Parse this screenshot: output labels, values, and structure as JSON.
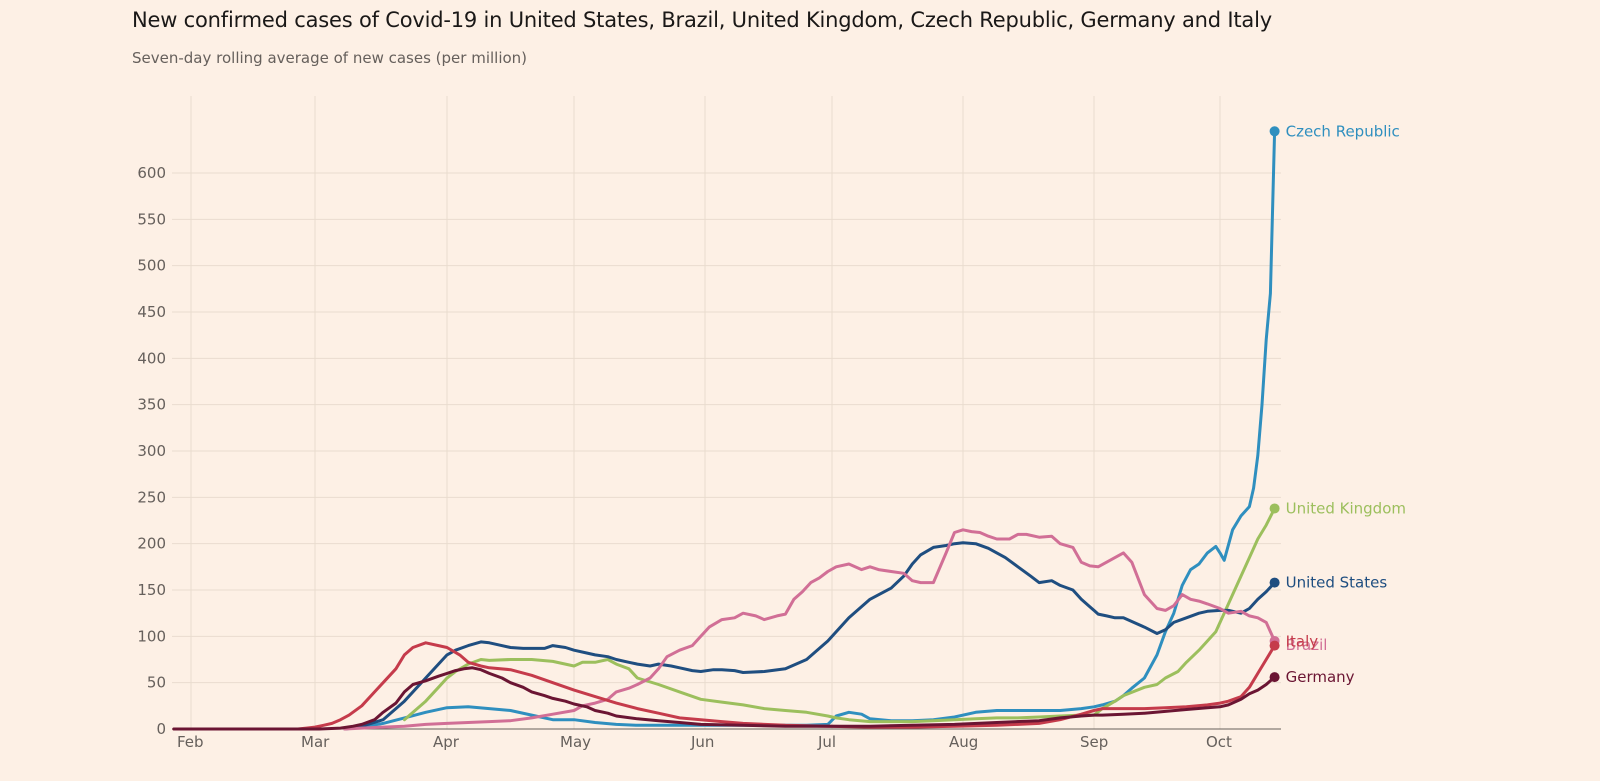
{
  "header": {
    "title": "New confirmed cases of Covid-19 in United States, Brazil, United Kingdom, Czech Republic, Germany and Italy",
    "subtitle": "Seven-day rolling average of new cases (per million)"
  },
  "chart_data": {
    "type": "line",
    "title": "New confirmed cases of Covid-19 in United States, Brazil, United Kingdom, Czech Republic, Germany and Italy",
    "subtitle": "Seven-day rolling average of new cases (per million)",
    "xlabel": "",
    "ylabel": "",
    "x_unit": "days since Feb 1, 2020",
    "xlim": [
      -4,
      256
    ],
    "ylim": [
      0,
      650
    ],
    "yticks": [
      0,
      50,
      100,
      150,
      200,
      250,
      300,
      350,
      400,
      450,
      500,
      550,
      600
    ],
    "xticks": [
      {
        "label": "Feb",
        "day": 0
      },
      {
        "label": "Mar",
        "day": 29
      },
      {
        "label": "Apr",
        "day": 60
      },
      {
        "label": "May",
        "day": 90
      },
      {
        "label": "Jun",
        "day": 121
      },
      {
        "label": "Jul",
        "day": 151
      },
      {
        "label": "Aug",
        "day": 182
      },
      {
        "label": "Sep",
        "day": 213
      },
      {
        "label": "Oct",
        "day": 243
      }
    ],
    "grid": true,
    "legend": "end-of-line labels (right)",
    "series": [
      {
        "name": "Czech Republic",
        "label": "Czech Republic",
        "color": "#2f8fbf",
        "x": [
          36,
          40,
          45,
          50,
          55,
          60,
          65,
          70,
          75,
          80,
          85,
          90,
          95,
          100,
          105,
          110,
          115,
          120,
          125,
          130,
          135,
          140,
          145,
          150,
          152,
          155,
          158,
          160,
          165,
          170,
          175,
          180,
          185,
          190,
          195,
          200,
          205,
          210,
          213,
          215,
          218,
          220,
          222,
          225,
          228,
          230,
          232,
          234,
          236,
          238,
          240,
          242,
          243,
          244,
          246,
          248,
          250,
          251,
          252,
          253,
          254,
          255,
          256
        ],
        "y": [
          0,
          2,
          6,
          12,
          18,
          23,
          24,
          22,
          20,
          15,
          10,
          10,
          7,
          5,
          4,
          4,
          4,
          4,
          4,
          4,
          4,
          4,
          4,
          5,
          14,
          18,
          16,
          11,
          9,
          9,
          10,
          13,
          18,
          20,
          20,
          20,
          20,
          22,
          24,
          26,
          30,
          36,
          44,
          55,
          80,
          105,
          125,
          155,
          172,
          178,
          190,
          197,
          190,
          182,
          215,
          230,
          240,
          260,
          295,
          350,
          420,
          470,
          645
        ]
      },
      {
        "name": "United Kingdom",
        "label": "United Kingdom",
        "color": "#9cbf5d",
        "x": [
          50,
          55,
          58,
          60,
          62,
          65,
          68,
          70,
          75,
          80,
          85,
          90,
          92,
          95,
          98,
          100,
          103,
          105,
          110,
          115,
          120,
          125,
          130,
          135,
          140,
          145,
          150,
          152,
          155,
          160,
          165,
          170,
          175,
          180,
          185,
          190,
          195,
          200,
          205,
          210,
          213,
          215,
          218,
          220,
          225,
          228,
          230,
          233,
          235,
          238,
          240,
          242,
          244,
          246,
          248,
          250,
          252,
          254,
          256
        ],
        "y": [
          10,
          30,
          45,
          55,
          62,
          70,
          75,
          74,
          75,
          75,
          73,
          68,
          72,
          72,
          75,
          70,
          65,
          55,
          48,
          40,
          32,
          29,
          26,
          22,
          20,
          18,
          14,
          12,
          10,
          8,
          8,
          8,
          9,
          10,
          11,
          12,
          12,
          13,
          14,
          15,
          15,
          22,
          30,
          36,
          45,
          48,
          55,
          62,
          72,
          85,
          95,
          105,
          125,
          145,
          165,
          185,
          205,
          220,
          238
        ]
      },
      {
        "name": "United States",
        "label": "United States",
        "color": "#1f4e80",
        "x": [
          36,
          40,
          45,
          50,
          55,
          60,
          62,
          65,
          68,
          70,
          72,
          75,
          78,
          80,
          83,
          85,
          88,
          90,
          93,
          95,
          98,
          100,
          103,
          105,
          108,
          110,
          113,
          115,
          118,
          120,
          123,
          125,
          128,
          130,
          135,
          140,
          145,
          150,
          155,
          160,
          165,
          168,
          170,
          172,
          175,
          178,
          180,
          182,
          185,
          188,
          190,
          192,
          195,
          198,
          200,
          203,
          205,
          208,
          210,
          212,
          213,
          214,
          216,
          218,
          220,
          222,
          225,
          228,
          230,
          232,
          235,
          238,
          240,
          243,
          245,
          248,
          250,
          252,
          254,
          256
        ],
        "y": [
          0,
          3,
          10,
          30,
          55,
          80,
          85,
          90,
          94,
          93,
          91,
          88,
          87,
          87,
          87,
          90,
          88,
          85,
          82,
          80,
          78,
          75,
          72,
          70,
          68,
          70,
          68,
          66,
          63,
          62,
          64,
          64,
          63,
          61,
          62,
          65,
          75,
          95,
          120,
          140,
          152,
          165,
          178,
          188,
          196,
          198,
          200,
          201,
          200,
          195,
          190,
          185,
          175,
          165,
          158,
          160,
          155,
          150,
          140,
          132,
          128,
          124,
          122,
          120,
          120,
          116,
          110,
          103,
          107,
          115,
          120,
          125,
          127,
          128,
          128,
          125,
          130,
          140,
          148,
          158
        ]
      },
      {
        "name": "Brazil",
        "label": "Brazil",
        "color": "#d16f96",
        "x": [
          36,
          40,
          45,
          50,
          55,
          60,
          65,
          70,
          75,
          80,
          85,
          90,
          92,
          95,
          98,
          100,
          103,
          105,
          108,
          110,
          112,
          115,
          118,
          120,
          122,
          125,
          128,
          130,
          133,
          135,
          138,
          140,
          142,
          144,
          146,
          148,
          150,
          152,
          155,
          158,
          160,
          162,
          165,
          168,
          170,
          172,
          175,
          178,
          180,
          182,
          184,
          186,
          188,
          190,
          193,
          195,
          197,
          200,
          203,
          205,
          208,
          210,
          212,
          214,
          216,
          218,
          220,
          222,
          225,
          228,
          230,
          232,
          234,
          236,
          238,
          240,
          243,
          245,
          248,
          250,
          252,
          254,
          256
        ],
        "y": [
          0,
          1,
          2,
          3,
          5,
          6,
          7,
          8,
          9,
          12,
          16,
          20,
          25,
          28,
          32,
          40,
          44,
          48,
          55,
          65,
          78,
          85,
          90,
          100,
          110,
          118,
          120,
          125,
          122,
          118,
          122,
          124,
          140,
          148,
          158,
          163,
          170,
          175,
          178,
          172,
          175,
          172,
          170,
          168,
          160,
          158,
          158,
          190,
          212,
          215,
          213,
          212,
          208,
          205,
          205,
          210,
          210,
          207,
          208,
          200,
          196,
          180,
          176,
          175,
          180,
          185,
          190,
          180,
          145,
          130,
          128,
          133,
          145,
          140,
          138,
          135,
          130,
          125,
          127,
          122,
          120,
          115,
          95
        ]
      },
      {
        "name": "Italy",
        "label": "Italy",
        "color": "#c53b4b",
        "x": [
          -4,
          0,
          10,
          20,
          25,
          27,
          29,
          31,
          33,
          35,
          37,
          40,
          43,
          45,
          48,
          50,
          52,
          55,
          58,
          60,
          63,
          65,
          68,
          70,
          75,
          80,
          85,
          90,
          95,
          100,
          105,
          110,
          115,
          120,
          125,
          130,
          140,
          150,
          160,
          170,
          180,
          190,
          200,
          205,
          210,
          213,
          215,
          220,
          225,
          230,
          235,
          240,
          243,
          245,
          248,
          250,
          252,
          254,
          256
        ],
        "y": [
          0,
          0,
          0,
          0,
          0,
          1,
          2,
          4,
          6,
          10,
          15,
          25,
          40,
          50,
          65,
          80,
          88,
          93,
          90,
          88,
          80,
          72,
          68,
          66,
          64,
          58,
          50,
          42,
          35,
          28,
          22,
          17,
          12,
          10,
          8,
          6,
          4,
          3,
          2,
          2,
          3,
          4,
          6,
          10,
          16,
          20,
          22,
          22,
          22,
          23,
          24,
          26,
          28,
          30,
          35,
          45,
          60,
          75,
          90
        ]
      },
      {
        "name": "Germany",
        "label": "Germany",
        "color": "#6b1533",
        "x": [
          -4,
          0,
          10,
          20,
          30,
          35,
          38,
          40,
          43,
          45,
          48,
          50,
          52,
          55,
          58,
          60,
          62,
          64,
          66,
          68,
          70,
          73,
          75,
          78,
          80,
          83,
          85,
          88,
          90,
          93,
          95,
          98,
          100,
          105,
          110,
          115,
          120,
          130,
          140,
          150,
          160,
          170,
          180,
          190,
          200,
          205,
          210,
          213,
          215,
          220,
          225,
          230,
          235,
          240,
          243,
          245,
          248,
          250,
          252,
          254,
          256
        ],
        "y": [
          0,
          0,
          0,
          0,
          0,
          1,
          3,
          5,
          10,
          18,
          28,
          40,
          48,
          52,
          57,
          60,
          63,
          65,
          66,
          64,
          60,
          55,
          50,
          45,
          40,
          36,
          33,
          30,
          27,
          24,
          20,
          17,
          14,
          11,
          9,
          7,
          5,
          4,
          3,
          3,
          3,
          4,
          5,
          7,
          9,
          12,
          14,
          15,
          15,
          16,
          17,
          19,
          21,
          23,
          24,
          26,
          32,
          38,
          42,
          48,
          56
        ]
      }
    ]
  }
}
